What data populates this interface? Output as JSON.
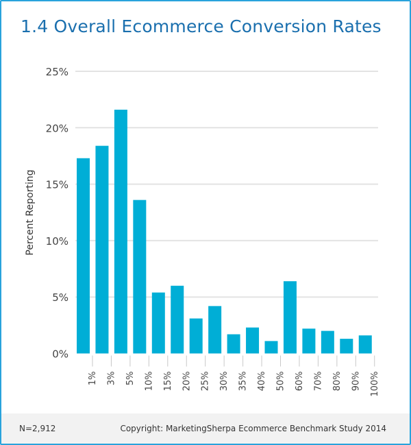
{
  "title": "1.4 Overall Ecommerce Conversion Rates",
  "footer": {
    "n": "N=2,912",
    "copyright": "Copyright: MarketingSherpa Ecommerce Benchmark Study 2014"
  },
  "colors": {
    "bar": "#00aed6",
    "title": "#1a6fae",
    "border": "#29a3dc"
  },
  "chart_data": {
    "type": "bar",
    "title": "1.4 Overall Ecommerce Conversion Rates",
    "xlabel": "",
    "ylabel": "Percent Reporting",
    "ylim": [
      0,
      25
    ],
    "yticks": [
      "0%",
      "5%",
      "10%",
      "15%",
      "20%",
      "25%"
    ],
    "grid": true,
    "categories": [
      "1%",
      "3%",
      "5%",
      "10%",
      "15%",
      "20%",
      "25%",
      "30%",
      "35%",
      "40%",
      "50%",
      "60%",
      "70%",
      "80%",
      "90%",
      "100%"
    ],
    "values": [
      17.3,
      18.4,
      21.6,
      13.6,
      5.4,
      6.0,
      3.1,
      4.2,
      1.7,
      2.3,
      1.1,
      6.4,
      2.2,
      2.0,
      1.3,
      1.6
    ]
  }
}
